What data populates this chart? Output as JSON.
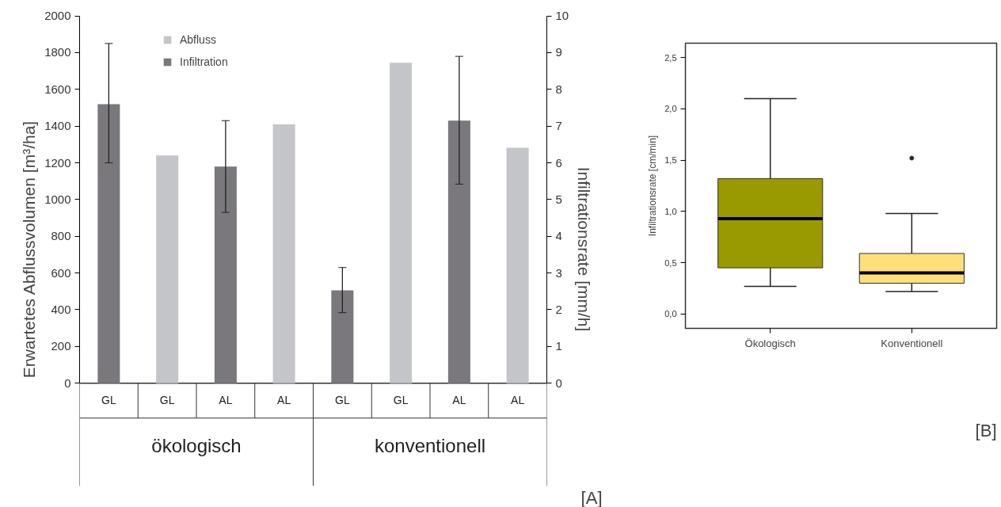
{
  "chart_data": [
    {
      "type": "bar",
      "ylabel": "Erwartetes Abflussvolumen [m³/ha]",
      "y2label": "Infiltrationsrate [mm/h]",
      "categories": [
        "GL",
        "GL",
        "AL",
        "AL",
        "GL",
        "GL",
        "AL",
        "AL"
      ],
      "series": [
        {
          "name": "Abfluss",
          "color": "#c4c5c9",
          "values": [
            null,
            1240,
            null,
            1410,
            null,
            1745,
            null,
            1282
          ]
        },
        {
          "name": "Infiltration",
          "color": "#7a787d",
          "axis": "y2",
          "values": [
            7.6,
            null,
            5.9,
            null,
            2.53,
            null,
            7.15,
            null
          ],
          "errors": [
            [
              6.0,
              9.25
            ],
            null,
            [
              4.65,
              7.15
            ],
            null,
            [
              1.92,
              3.15
            ],
            null,
            [
              5.42,
              8.9
            ],
            null
          ]
        }
      ],
      "ylim": [
        0,
        2000
      ],
      "yticks": [
        0,
        200,
        400,
        600,
        800,
        1000,
        1200,
        1400,
        1600,
        1800,
        2000
      ],
      "y2lim": [
        0,
        10
      ],
      "y2ticks": [
        0,
        1,
        2,
        3,
        4,
        5,
        6,
        7,
        8,
        9,
        10
      ],
      "legend": "top left",
      "grid": false,
      "annotations": [
        "ökologisch",
        "konventionell",
        "[A]"
      ]
    },
    {
      "type": "box",
      "ylabel": "Infiltrationsrate [cm/min]",
      "categories": [
        "Ökologisch",
        "Konventionell"
      ],
      "colors": [
        "#999900",
        "#ffdf7a"
      ],
      "boxes": [
        {
          "low": 0.27,
          "q1": 0.45,
          "median": 0.93,
          "q3": 1.32,
          "high": 2.1
        },
        {
          "low": 0.22,
          "q1": 0.3,
          "median": 0.4,
          "q3": 0.59,
          "high": 0.98,
          "outliers": [
            1.52
          ]
        }
      ],
      "ylim": [
        -0.14,
        2.64
      ],
      "yticks": [
        {
          "value": 0,
          "label": "0,0"
        },
        {
          "value": 0.5,
          "label": "0,5"
        },
        {
          "value": 1,
          "label": "1,0"
        },
        {
          "value": 1.5,
          "label": "1,5"
        },
        {
          "value": 2,
          "label": "2,0"
        },
        {
          "value": 2.5,
          "label": "2,5"
        }
      ],
      "grid": false,
      "legend": false,
      "annotations": [
        "[B]"
      ]
    }
  ]
}
